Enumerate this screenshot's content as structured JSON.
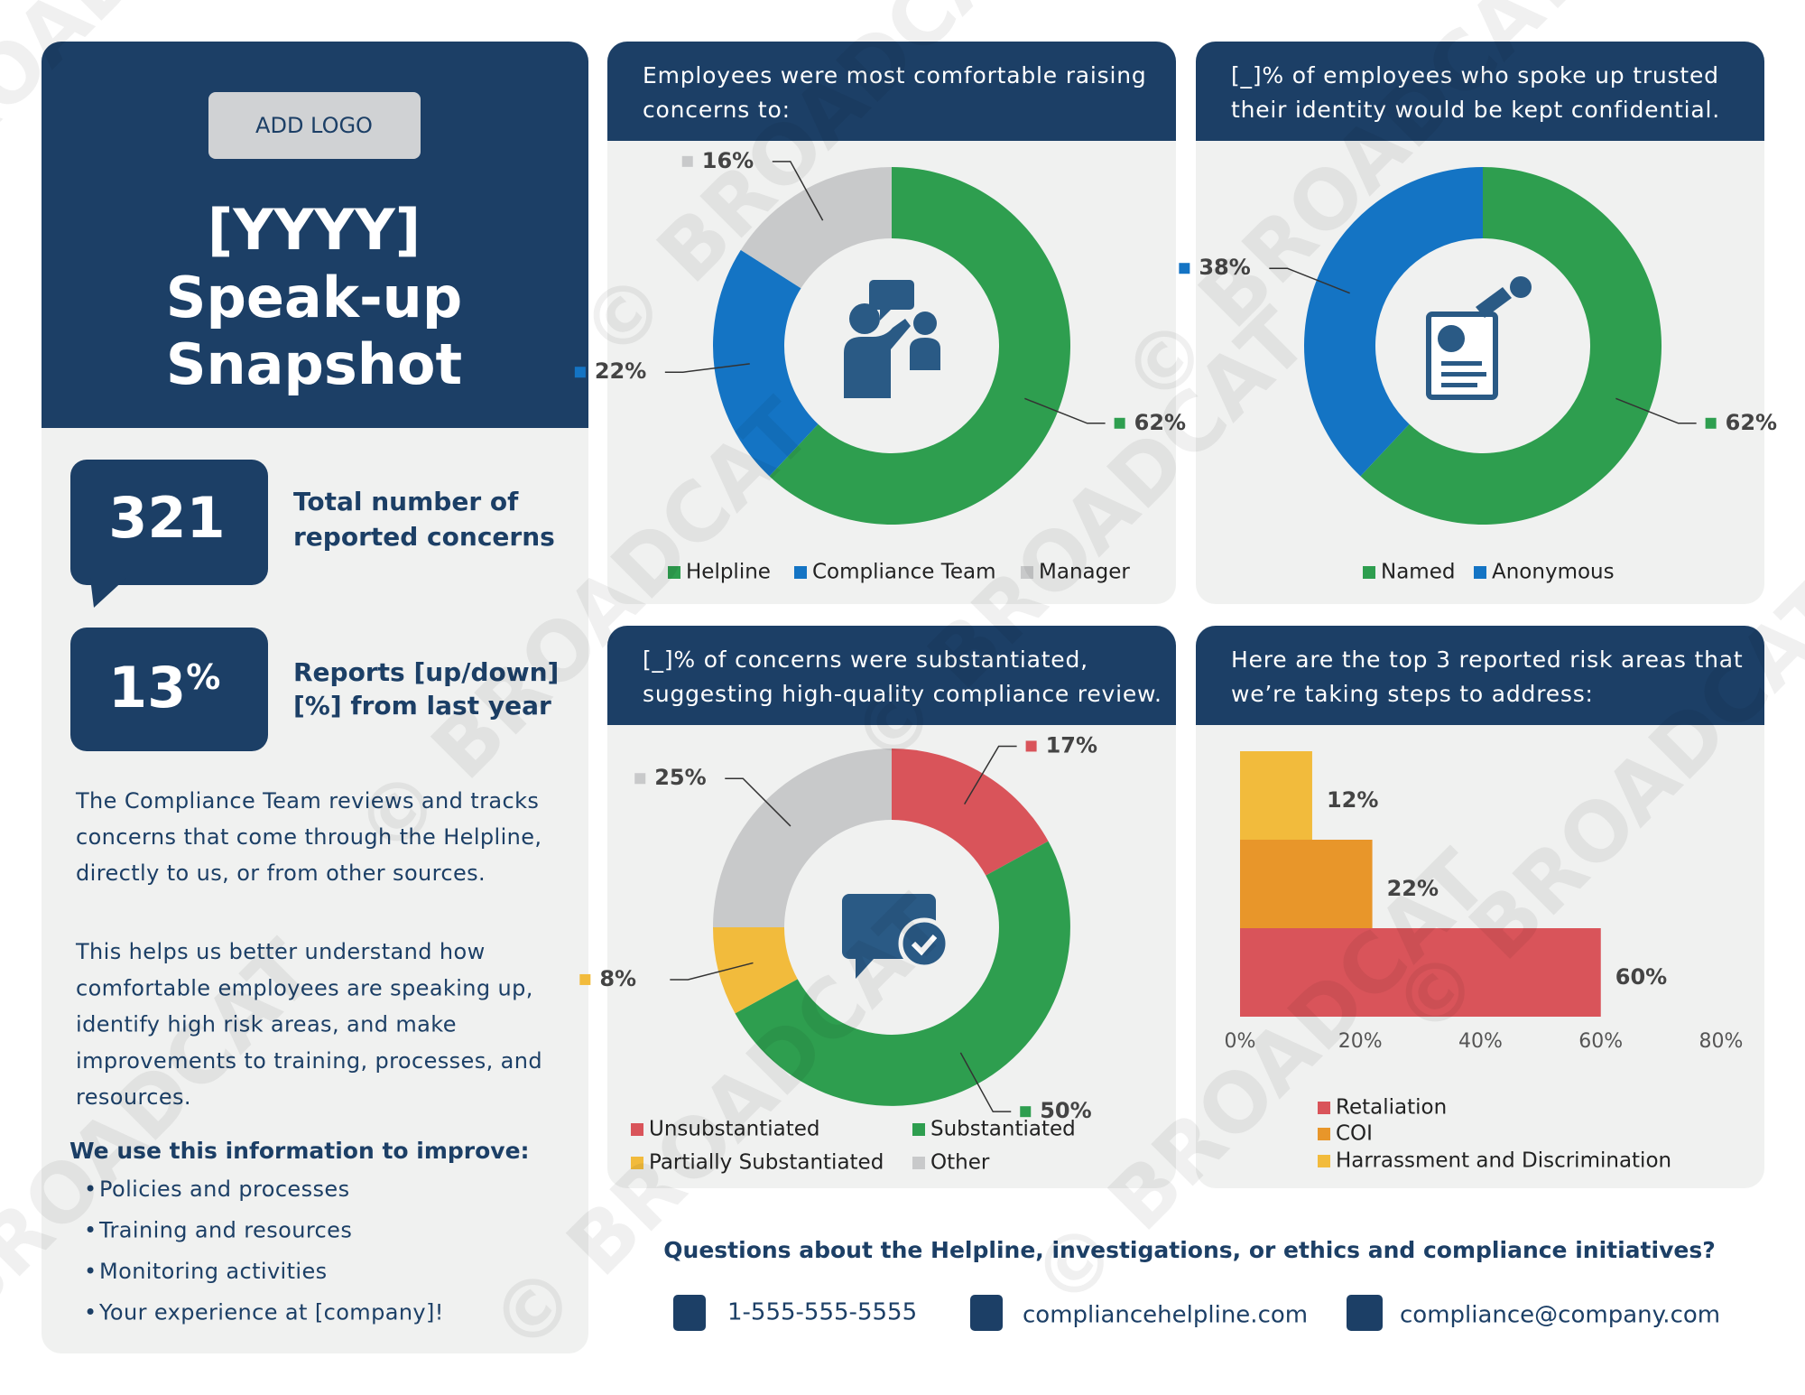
{
  "watermark": "© BROADCAT",
  "header": {
    "logo_button": "ADD LOGO",
    "title_lines": [
      "[YYYY]",
      "Speak-up",
      "Snapshot"
    ]
  },
  "stats": [
    {
      "value": "321",
      "label_lines": [
        "Total number of",
        "reported concerns"
      ]
    },
    {
      "value": "13",
      "unit": "%",
      "label_lines": [
        "Reports [up/down]",
        "[%] from last year"
      ]
    }
  ],
  "intro_lines": [
    "The Compliance Team reviews and tracks",
    "concerns that come through the Helpline,",
    "directly to us, or from other sources."
  ],
  "purpose_lines": [
    "This helps us better understand how",
    "comfortable employees are speaking up,",
    "identify high risk areas, and make",
    "improvements to training, processes, and",
    "resources."
  ],
  "improve": {
    "heading": "We use this information to improve:",
    "bullet": "•",
    "items": [
      "Policies and processes",
      "Training and resources",
      "Monitoring activities",
      "Your experience at [company]!"
    ]
  },
  "contact": {
    "heading": "Questions about the Helpline, investigations, or ethics and compliance initiatives?",
    "phone": "1-555-555-5555",
    "web": "compliancehelpline.com",
    "email": "compliance@company.com"
  },
  "chart_data": [
    {
      "type": "pie",
      "title": [
        "Employees were most comfortable raising",
        "concerns to:"
      ],
      "categories": [
        "Helpline",
        "Compliance Team",
        "Manager"
      ],
      "values": [
        62,
        22,
        16
      ],
      "value_labels": [
        "62%",
        "22%",
        "16%"
      ],
      "colors": [
        "#2e9e4f",
        "#1474c4",
        "#c8c9ca"
      ]
    },
    {
      "type": "pie",
      "title": [
        "[_]% of employees who spoke up trusted",
        "their identity would be kept confidential."
      ],
      "categories": [
        "Named",
        "Anonymous"
      ],
      "values": [
        62,
        38
      ],
      "value_labels": [
        "62%",
        "38%"
      ],
      "colors": [
        "#2e9e4f",
        "#1474c4"
      ]
    },
    {
      "type": "pie",
      "title": [
        "[_]% of concerns were substantiated,",
        "suggesting high-quality compliance review."
      ],
      "categories": [
        "Unsubstantiated",
        "Substantiated",
        "Partially Substantiated",
        "Other"
      ],
      "values": [
        17,
        50,
        8,
        25
      ],
      "value_labels": [
        "17%",
        "50%",
        "8%",
        "25%"
      ],
      "colors": [
        "#d9545a",
        "#2e9e4f",
        "#f2bb3c",
        "#c8c9ca"
      ]
    },
    {
      "type": "barh",
      "title": [
        "Here are the top 3 reported risk areas that",
        "we’re taking steps to address:"
      ],
      "categories": [
        "Retaliation",
        "COI",
        "Harrassment and Discrimination"
      ],
      "values": [
        60,
        22,
        12
      ],
      "value_labels": [
        "60%",
        "22%",
        "12%"
      ],
      "colors": [
        "#d9545a",
        "#e8962a",
        "#f2bb3c"
      ],
      "xlim": [
        0,
        80
      ],
      "xticks": [
        {
          "value": 0,
          "label": "0%"
        },
        {
          "value": 20,
          "label": "20%"
        },
        {
          "value": 40,
          "label": "40%"
        },
        {
          "value": 60,
          "label": "60%"
        },
        {
          "value": 80,
          "label": "80%"
        }
      ]
    }
  ]
}
